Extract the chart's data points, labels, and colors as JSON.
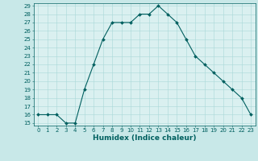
{
  "x": [
    0,
    1,
    2,
    3,
    4,
    5,
    6,
    7,
    8,
    9,
    10,
    11,
    12,
    13,
    14,
    15,
    16,
    17,
    18,
    19,
    20,
    21,
    22,
    23
  ],
  "y": [
    16,
    16,
    16,
    15,
    15,
    19,
    22,
    25,
    27,
    27,
    27,
    28,
    28,
    29,
    28,
    27,
    25,
    23,
    22,
    21,
    20,
    19,
    18,
    16
  ],
  "xlabel": "Humidex (Indice chaleur)",
  "ylim_min": 15,
  "ylim_max": 29,
  "xlim_min": -0.5,
  "xlim_max": 23.5,
  "yticks": [
    15,
    16,
    17,
    18,
    19,
    20,
    21,
    22,
    23,
    24,
    25,
    26,
    27,
    28,
    29
  ],
  "xticks": [
    0,
    1,
    2,
    3,
    4,
    5,
    6,
    7,
    8,
    9,
    10,
    11,
    12,
    13,
    14,
    15,
    16,
    17,
    18,
    19,
    20,
    21,
    22,
    23
  ],
  "line_color": "#005f5f",
  "bg_color": "#c8e8e8",
  "plot_bg": "#daf0f0",
  "grid_color": "#a8d8d8",
  "xlabel_fontsize": 6.5,
  "tick_fontsize": 5.0
}
